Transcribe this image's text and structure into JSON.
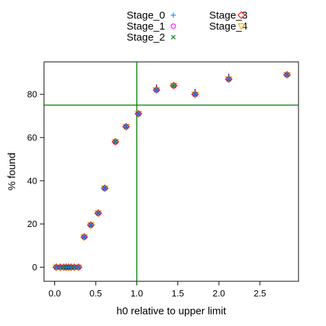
{
  "chart_data": {
    "type": "scatter",
    "xlabel": "h0 relative to upper limit",
    "ylabel": "% found",
    "xlim": [
      -0.13,
      2.97
    ],
    "ylim": [
      -6.5,
      95
    ],
    "xticks": [
      0.0,
      0.5,
      1.0,
      1.5,
      2.0,
      2.5
    ],
    "xtick_labels": [
      "0.0",
      "0.5",
      "1.0",
      "1.5",
      "2.0",
      "2.5"
    ],
    "yticks": [
      0,
      20,
      40,
      60,
      80
    ],
    "ytick_labels": [
      "0",
      "20",
      "40",
      "60",
      "80"
    ],
    "reference_lines": {
      "vertical_x": 1.0,
      "horizontal_y": 75,
      "color": "#008000"
    },
    "grid": false,
    "legend_position": "top",
    "x": [
      0.02,
      0.07,
      0.11,
      0.14,
      0.17,
      0.2,
      0.24,
      0.29,
      0.36,
      0.44,
      0.53,
      0.61,
      0.74,
      0.87,
      1.02,
      1.24,
      1.45,
      1.71,
      2.12,
      2.83
    ],
    "series": [
      {
        "name": "Stage_0",
        "marker": "plus",
        "color": "#0080ff",
        "values": [
          0,
          0,
          0,
          0,
          0,
          0,
          0,
          0,
          14,
          19.5,
          25,
          36.5,
          58,
          65,
          71,
          82,
          84,
          80,
          87,
          89
        ]
      },
      {
        "name": "Stage_1",
        "marker": "circle",
        "color": "#ff00ff",
        "values": [
          0,
          0,
          0,
          0,
          0,
          0,
          0,
          0,
          14,
          19.5,
          25,
          36.5,
          58,
          65,
          71,
          82,
          84,
          80,
          87,
          89
        ]
      },
      {
        "name": "Stage_2",
        "marker": "x",
        "color": "#006400",
        "values": [
          0,
          0,
          0,
          0,
          0,
          0,
          0,
          0,
          14,
          19.5,
          25,
          36.5,
          58,
          65,
          71,
          82,
          84,
          80,
          87,
          89
        ]
      },
      {
        "name": "Stage_3",
        "marker": "diamond",
        "color": "#ff0000",
        "values": [
          0,
          0,
          0,
          0,
          0,
          0,
          0,
          0,
          14,
          19.5,
          25,
          36.5,
          58,
          65,
          71,
          82,
          84,
          80,
          87,
          89
        ]
      },
      {
        "name": "Stage_4",
        "marker": "triangle-down",
        "color": "#ffa500",
        "values": [
          0,
          0,
          0,
          0,
          0,
          0,
          0,
          0,
          14,
          19.5,
          25,
          36.5,
          58,
          65,
          71,
          82,
          84,
          80,
          87,
          89
        ]
      }
    ],
    "error_bars": {
      "color": "#000080",
      "upper": [
        1.5,
        1.5,
        1.5,
        1.2,
        1.2,
        1.2,
        1.2,
        1.2,
        1.5,
        1.5,
        1.5,
        1.5,
        1.5,
        1.5,
        1.5,
        2.5,
        1.5,
        2.5,
        2.5,
        1.5
      ]
    }
  }
}
